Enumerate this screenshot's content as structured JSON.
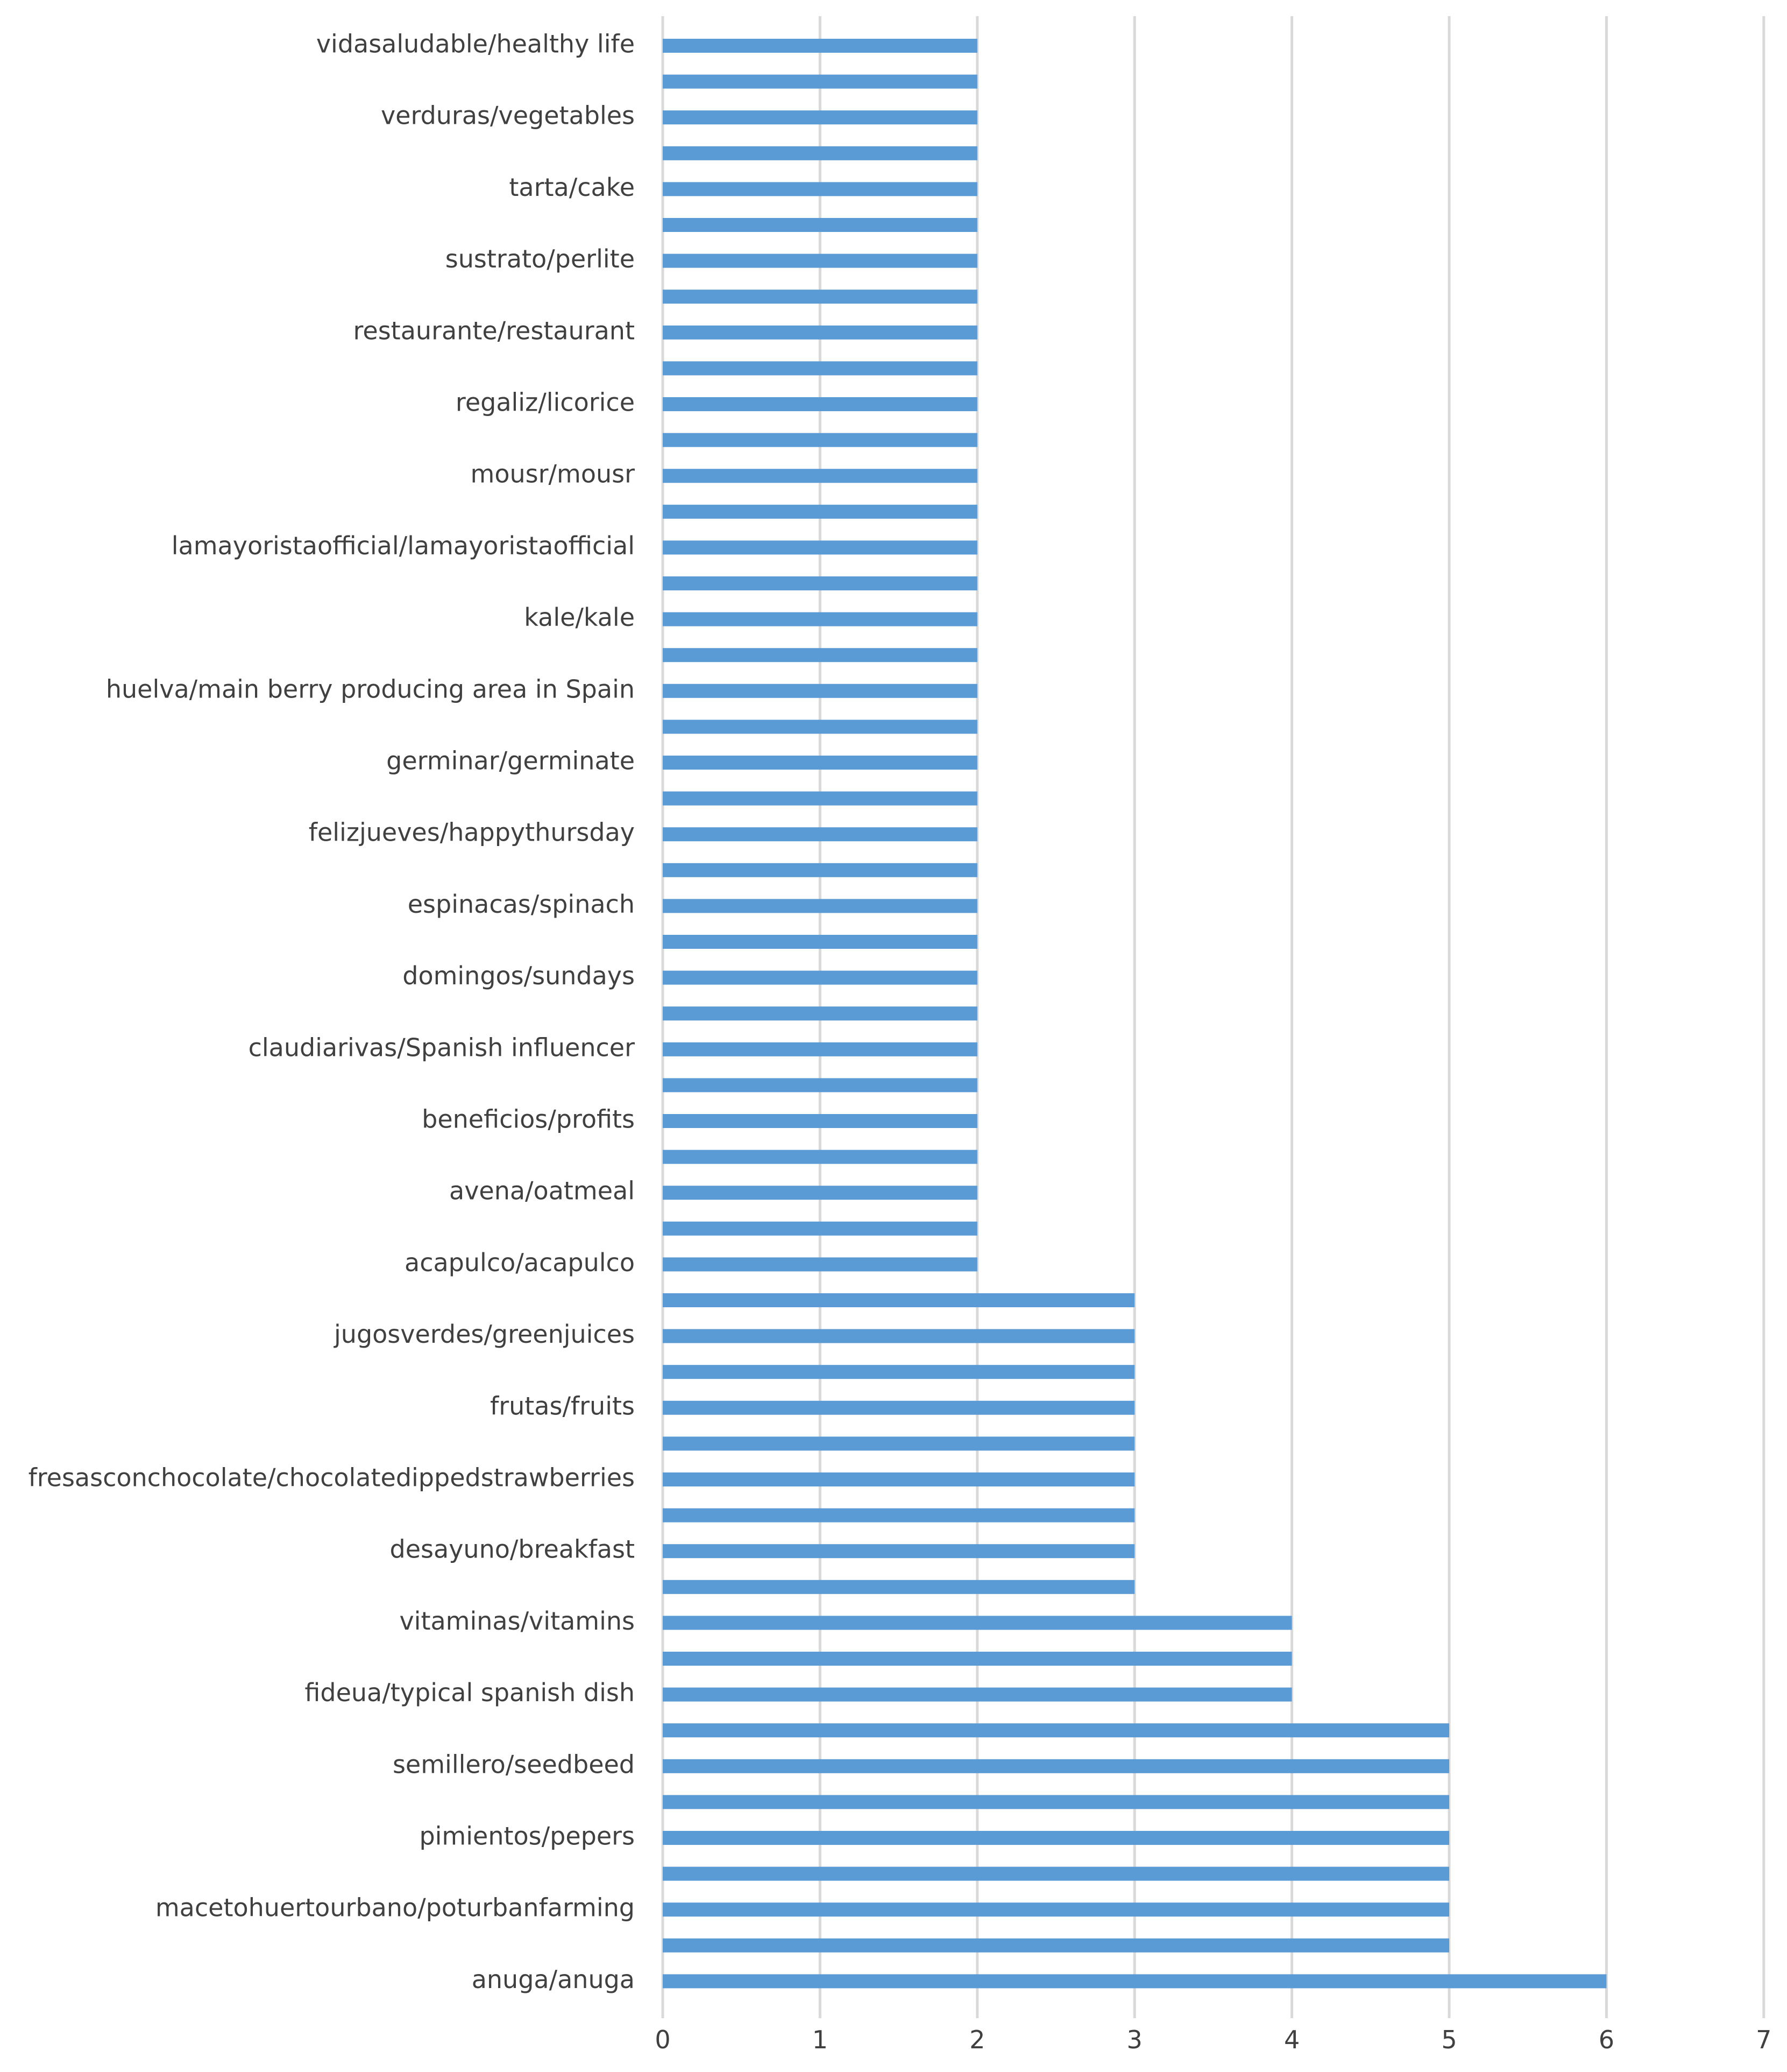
{
  "chart_data": {
    "type": "bar",
    "orientation": "horizontal",
    "title": "",
    "xlabel": "",
    "ylabel": "",
    "xlim": [
      0,
      7
    ],
    "x_ticks": [
      "0",
      "1",
      "2",
      "3",
      "4",
      "5",
      "6",
      "7"
    ],
    "grid": true,
    "bar_color": "#5b9bd5",
    "gridline_color": "#d9d9d9",
    "label_color": "#404040",
    "bars": [
      {
        "label": "vidasaludable/healthy life",
        "value": 2
      },
      {
        "label": "",
        "value": 2
      },
      {
        "label": "verduras/vegetables",
        "value": 2
      },
      {
        "label": "",
        "value": 2
      },
      {
        "label": "tarta/cake",
        "value": 2
      },
      {
        "label": "",
        "value": 2
      },
      {
        "label": "sustrato/perlite",
        "value": 2
      },
      {
        "label": "",
        "value": 2
      },
      {
        "label": "restaurante/restaurant",
        "value": 2
      },
      {
        "label": "",
        "value": 2
      },
      {
        "label": "regaliz/licorice",
        "value": 2
      },
      {
        "label": "",
        "value": 2
      },
      {
        "label": "mousr/mousr",
        "value": 2
      },
      {
        "label": "",
        "value": 2
      },
      {
        "label": "lamayoristaofficial/lamayoristaofficial",
        "value": 2
      },
      {
        "label": "",
        "value": 2
      },
      {
        "label": "kale/kale",
        "value": 2
      },
      {
        "label": "",
        "value": 2
      },
      {
        "label": "huelva/main berry producing area in Spain",
        "value": 2
      },
      {
        "label": "",
        "value": 2
      },
      {
        "label": "germinar/germinate",
        "value": 2
      },
      {
        "label": "",
        "value": 2
      },
      {
        "label": "felizjueves/happythursday",
        "value": 2
      },
      {
        "label": "",
        "value": 2
      },
      {
        "label": "espinacas/spinach",
        "value": 2
      },
      {
        "label": "",
        "value": 2
      },
      {
        "label": "domingos/sundays",
        "value": 2
      },
      {
        "label": "",
        "value": 2
      },
      {
        "label": "claudiarivas/Spanish influencer",
        "value": 2
      },
      {
        "label": "",
        "value": 2
      },
      {
        "label": "beneficios/profits",
        "value": 2
      },
      {
        "label": "",
        "value": 2
      },
      {
        "label": "avena/oatmeal",
        "value": 2
      },
      {
        "label": "",
        "value": 2
      },
      {
        "label": "acapulco/acapulco",
        "value": 2
      },
      {
        "label": "",
        "value": 3
      },
      {
        "label": "jugosverdes/greenjuices",
        "value": 3
      },
      {
        "label": "",
        "value": 3
      },
      {
        "label": "frutas/fruits",
        "value": 3
      },
      {
        "label": "",
        "value": 3
      },
      {
        "label": "fresasconchocolate/chocolatedippedstrawberries",
        "value": 3
      },
      {
        "label": "",
        "value": 3
      },
      {
        "label": "desayuno/breakfast",
        "value": 3
      },
      {
        "label": "",
        "value": 3
      },
      {
        "label": "vitaminas/vitamins",
        "value": 4
      },
      {
        "label": "",
        "value": 4
      },
      {
        "label": "fideua/typical spanish dish",
        "value": 4
      },
      {
        "label": "",
        "value": 5
      },
      {
        "label": "semillero/seedbeed",
        "value": 5
      },
      {
        "label": "",
        "value": 5
      },
      {
        "label": "pimientos/pepers",
        "value": 5
      },
      {
        "label": "",
        "value": 5
      },
      {
        "label": "macetohuertourbano/poturbanfarming",
        "value": 5
      },
      {
        "label": "",
        "value": 5
      },
      {
        "label": "anuga/anuga",
        "value": 6
      }
    ]
  }
}
